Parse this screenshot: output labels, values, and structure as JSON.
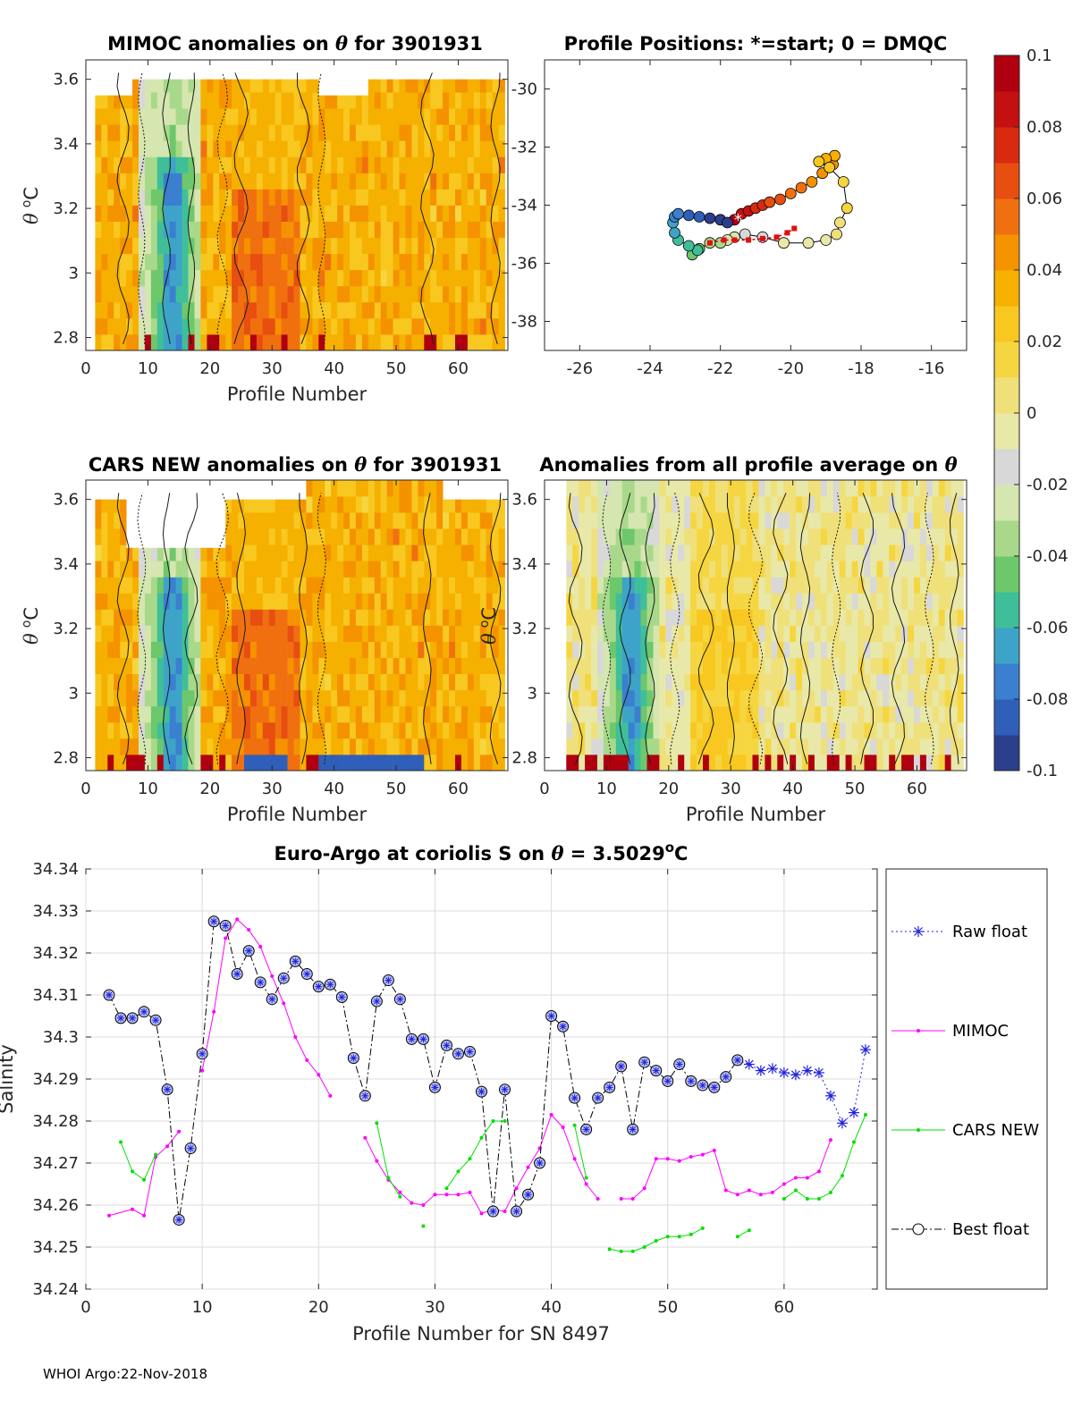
{
  "footer": "WHOI Argo:22-Nov-2018",
  "colorbar": {
    "ticks": [
      "0.1",
      "0.08",
      "0.06",
      "0.04",
      "0.02",
      "0",
      "-0.02",
      "-0.04",
      "-0.06",
      "-0.08",
      "-0.1"
    ],
    "colors": [
      "#2c3f8c",
      "#2f5fb8",
      "#3a7fd0",
      "#3ea3c8",
      "#3fbf99",
      "#6cc86a",
      "#a8d98a",
      "#d6e6b0",
      "#d8d8d8",
      "#e8e8a8",
      "#f0e07a",
      "#f6d640",
      "#f8c820",
      "#f5b000",
      "#f59200",
      "#f07010",
      "#e84e10",
      "#d92a10",
      "#c41010",
      "#b00010"
    ]
  },
  "chart_data": [
    {
      "type": "heatmap",
      "title_pre": "MIMOC anomalies on ",
      "title_post": " for 3901931",
      "theta": "θ",
      "xlabel": "Profile Number",
      "ylabel_sym": "θ",
      "ylabel_unit": "C",
      "xlim": [
        0,
        68
      ],
      "ylim": [
        2.76,
        3.66
      ],
      "xticks": [
        "0",
        "10",
        "20",
        "30",
        "40",
        "50",
        "60"
      ],
      "yticks": [
        "2.8",
        "3",
        "3.2",
        "3.4",
        "3.6"
      ]
    },
    {
      "type": "scatter",
      "title": "Profile Positions: *=start; 0 = DMQC",
      "xlim": [
        -27,
        -15
      ],
      "ylim": [
        -39,
        -29
      ],
      "xticks": [
        "-26",
        "-24",
        "-22",
        "-20",
        "-18",
        "-16"
      ],
      "yticks": [
        "-30",
        "-32",
        "-34",
        "-36",
        "-38"
      ],
      "lon": [
        -21.6,
        -21.4,
        -21.2,
        -21.0,
        -20.8,
        -20.6,
        -20.3,
        -20.0,
        -19.7,
        -19.4,
        -19.1,
        -18.8,
        -18.75,
        -19.0,
        -19.2,
        -18.9,
        -18.5,
        -18.4,
        -18.6,
        -18.7,
        -19.0,
        -19.5,
        -20.2,
        -20.8,
        -21.3,
        -21.6,
        -21.8,
        -22.0,
        -22.3,
        -22.6,
        -22.8,
        -22.65,
        -22.9,
        -23.2,
        -23.3,
        -23.35,
        -23.3,
        -23.2,
        -22.9,
        -22.6,
        -22.3,
        -22.0,
        -21.8
      ],
      "lat": [
        -34.5,
        -34.3,
        -34.2,
        -34.1,
        -34.0,
        -33.9,
        -33.8,
        -33.6,
        -33.4,
        -33.2,
        -32.9,
        -32.6,
        -32.3,
        -32.4,
        -32.5,
        -32.7,
        -33.2,
        -34.1,
        -34.6,
        -35.0,
        -35.2,
        -35.3,
        -35.3,
        -35.1,
        -35.0,
        -35.1,
        -35.2,
        -35.3,
        -35.3,
        -35.5,
        -35.7,
        -35.55,
        -35.4,
        -35.2,
        -34.95,
        -34.6,
        -34.4,
        -34.3,
        -34.35,
        -34.4,
        -34.45,
        -34.5,
        -34.6
      ],
      "dmqc_lon": [
        -22.3,
        -21.9,
        -21.6,
        -21.2,
        -20.8,
        -20.4,
        -20.1,
        -19.9
      ],
      "dmqc_lat": [
        -35.3,
        -35.2,
        -35.2,
        -35.2,
        -35.15,
        -35.1,
        -34.95,
        -34.8
      ]
    },
    {
      "type": "heatmap",
      "title_pre": "CARS NEW anomalies on ",
      "title_post": " for 3901931",
      "theta": "θ",
      "xlabel": "Profile Number",
      "ylabel_sym": "θ",
      "ylabel_unit": "C",
      "xlim": [
        0,
        68
      ],
      "ylim": [
        2.76,
        3.66
      ],
      "xticks": [
        "0",
        "10",
        "20",
        "30",
        "40",
        "50",
        "60"
      ],
      "yticks": [
        "2.8",
        "3",
        "3.2",
        "3.4",
        "3.6"
      ]
    },
    {
      "type": "heatmap",
      "title_pre": "Anomalies from all profile average on ",
      "title_post": "",
      "theta": "θ",
      "xlabel": "Profile Number",
      "ylabel_sym": "θ",
      "ylabel_unit": "C",
      "xlim": [
        0,
        68
      ],
      "ylim": [
        2.76,
        3.66
      ],
      "xticks": [
        "0",
        "10",
        "20",
        "30",
        "40",
        "50",
        "60"
      ],
      "yticks": [
        "2.8",
        "3",
        "3.2",
        "3.4",
        "3.6"
      ]
    },
    {
      "type": "line",
      "title_pre": "Euro-Argo at coriolis S on ",
      "title_mid": " = 3.5029",
      "title_sup": "o",
      "title_post": "C",
      "theta": "θ",
      "xlabel": "Profile Number for SN 8497",
      "ylabel": "Salinity",
      "xlim": [
        0,
        68
      ],
      "ylim": [
        34.24,
        34.34
      ],
      "xticks": [
        "0",
        "10",
        "20",
        "30",
        "40",
        "50",
        "60"
      ],
      "yticks": [
        "34.24",
        "34.25",
        "34.26",
        "34.27",
        "34.28",
        "34.29",
        "34.3",
        "34.31",
        "34.32",
        "34.33",
        "34.34"
      ],
      "series": [
        {
          "name": "Raw float",
          "color": "#2020e0",
          "x": [
            56,
            57,
            58,
            59,
            60,
            61,
            62,
            63,
            64,
            65,
            66,
            67
          ],
          "y": [
            34.2945,
            34.2935,
            34.292,
            34.2925,
            34.2915,
            34.291,
            34.292,
            34.2915,
            34.286,
            34.2795,
            34.282,
            34.297
          ]
        },
        {
          "name": "MIMOC",
          "color": "#ff00ff",
          "x": [
            2,
            4,
            5,
            6,
            7,
            8,
            null,
            10,
            11,
            12,
            13,
            14,
            15,
            16,
            17,
            18,
            19,
            20,
            21,
            null,
            24,
            25,
            26,
            27,
            28,
            29,
            30,
            31,
            32,
            33,
            34,
            35,
            36,
            37,
            38,
            39,
            40,
            41,
            42,
            43,
            44,
            null,
            46,
            47,
            48,
            49,
            50,
            51,
            52,
            53,
            54,
            55,
            56,
            57,
            58,
            59,
            60,
            61,
            62,
            63,
            64
          ],
          "y": [
            34.2575,
            34.259,
            34.2575,
            34.2715,
            34.274,
            34.2775,
            null,
            34.292,
            34.306,
            34.3235,
            34.328,
            34.3255,
            34.3215,
            34.3145,
            34.308,
            34.3,
            34.2945,
            34.291,
            34.286,
            null,
            34.276,
            34.2705,
            34.266,
            34.263,
            34.2605,
            34.26,
            34.2625,
            34.2625,
            34.2625,
            34.263,
            34.258,
            34.259,
            34.2585,
            34.264,
            34.269,
            34.2735,
            34.2815,
            34.2785,
            34.271,
            34.265,
            34.2615,
            null,
            34.2615,
            34.2615,
            34.264,
            34.271,
            34.271,
            34.2705,
            34.2715,
            34.272,
            34.273,
            34.2635,
            34.2625,
            34.2635,
            34.2625,
            34.263,
            34.265,
            34.2665,
            34.2665,
            34.268,
            34.2755
          ],
          "y_dummy": 0
        },
        {
          "name": "CARS NEW",
          "color": "#00e000",
          "x": [
            3,
            4,
            5,
            6,
            null,
            25,
            26,
            27,
            null,
            29,
            null,
            31,
            32,
            33,
            34,
            35,
            36,
            null,
            42,
            43,
            null,
            45,
            46,
            47,
            48,
            49,
            50,
            51,
            52,
            53,
            null,
            56,
            57,
            null,
            60,
            61,
            62,
            63,
            64,
            65,
            66,
            67
          ],
          "y": [
            34.275,
            34.268,
            34.266,
            34.272,
            null,
            34.2795,
            34.2665,
            34.262,
            null,
            34.255,
            null,
            34.264,
            34.268,
            34.271,
            34.276,
            34.28,
            34.28,
            null,
            34.279,
            34.2665,
            null,
            34.2495,
            34.249,
            34.249,
            34.25,
            34.2515,
            34.2525,
            34.2525,
            34.253,
            34.2545,
            null,
            34.2525,
            34.254,
            null,
            34.2615,
            34.2635,
            34.2615,
            34.2615,
            34.263,
            34.267,
            34.275,
            34.2815
          ]
        },
        {
          "name": "Best float",
          "color": "#000000",
          "x": [
            2,
            3,
            4,
            5,
            6,
            7,
            8,
            9,
            10,
            11,
            12,
            13,
            14,
            15,
            16,
            17,
            18,
            19,
            20,
            21,
            22,
            23,
            24,
            25,
            26,
            27,
            28,
            29,
            30,
            31,
            32,
            33,
            34,
            35,
            36,
            37,
            38,
            39,
            40,
            41,
            42,
            43,
            44,
            45,
            46,
            47,
            48,
            49,
            50,
            51,
            52,
            53,
            54,
            55,
            56
          ],
          "y": [
            34.31,
            34.3045,
            34.3045,
            34.306,
            34.304,
            34.2875,
            34.2565,
            34.2735,
            34.296,
            34.3275,
            34.3265,
            34.315,
            34.3205,
            34.313,
            34.309,
            34.314,
            34.318,
            34.315,
            34.312,
            34.3125,
            34.3095,
            34.295,
            34.286,
            34.3085,
            34.3135,
            34.309,
            34.2995,
            34.2995,
            34.288,
            34.298,
            34.296,
            34.2965,
            34.287,
            34.2585,
            34.2875,
            34.2585,
            34.2625,
            34.27,
            34.305,
            34.3025,
            34.2855,
            34.278,
            34.2855,
            34.288,
            34.293,
            34.278,
            34.294,
            34.292,
            34.2895,
            34.2935,
            34.2895,
            34.2885,
            34.288,
            34.2905,
            34.2945
          ]
        }
      ]
    }
  ]
}
